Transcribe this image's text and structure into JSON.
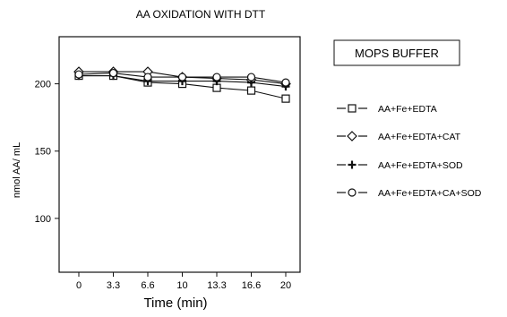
{
  "chart_data": {
    "type": "line",
    "title": "AA  OXIDATION WITH DTT",
    "xlabel": "Time (min)",
    "ylabel": "nmol AA/ mL",
    "x": [
      "0",
      "3.3",
      "6.6",
      "10",
      "13.3",
      "16.6",
      "20"
    ],
    "yticks": [
      100,
      150,
      200
    ],
    "ylim": [
      60,
      235
    ],
    "legend_title": "MOPS BUFFER",
    "series": [
      {
        "name": "AA+Fe+EDTA",
        "marker": "square",
        "values": [
          206,
          206,
          201,
          200,
          197,
          195,
          189
        ]
      },
      {
        "name": "AA+Fe+EDTA+CAT",
        "marker": "diamond",
        "values": [
          209,
          209,
          209,
          205,
          204,
          203,
          200
        ]
      },
      {
        "name": "AA+Fe+EDTA+SOD",
        "marker": "plus",
        "values": [
          206,
          206,
          202,
          202,
          202,
          201,
          198
        ]
      },
      {
        "name": "AA+Fe+EDTA+CA+SOD",
        "marker": "circle",
        "values": [
          207,
          208,
          205,
          205,
          205,
          205,
          201
        ]
      }
    ],
    "grid": false,
    "legend_position": "right"
  }
}
